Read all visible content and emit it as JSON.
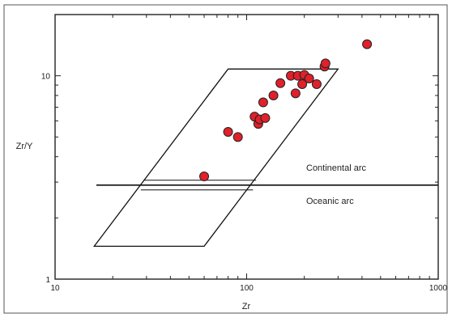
{
  "chart_data": {
    "type": "scatter",
    "xlabel": "Zr",
    "ylabel": "Zr/Y",
    "xscale": "log",
    "yscale": "log",
    "xlim": [
      10,
      1000
    ],
    "ylim": [
      1,
      20
    ],
    "x_major_ticks": [
      10,
      100,
      1000
    ],
    "y_major_ticks": [
      1,
      10
    ],
    "x_tick_labels": [
      "10",
      "100",
      "1000"
    ],
    "y_tick_labels": [
      "1",
      "10"
    ],
    "grid": false,
    "marker_color": "#e0202a",
    "points": [
      {
        "x": 60,
        "y": 3.2
      },
      {
        "x": 80,
        "y": 5.3
      },
      {
        "x": 90,
        "y": 5.0
      },
      {
        "x": 110,
        "y": 6.3
      },
      {
        "x": 115,
        "y": 5.8
      },
      {
        "x": 117,
        "y": 6.1
      },
      {
        "x": 122,
        "y": 7.4
      },
      {
        "x": 125,
        "y": 6.2
      },
      {
        "x": 138,
        "y": 8.0
      },
      {
        "x": 150,
        "y": 9.2
      },
      {
        "x": 170,
        "y": 10.0
      },
      {
        "x": 180,
        "y": 8.2
      },
      {
        "x": 185,
        "y": 10.0
      },
      {
        "x": 195,
        "y": 9.1
      },
      {
        "x": 200,
        "y": 10.1
      },
      {
        "x": 212,
        "y": 9.7
      },
      {
        "x": 232,
        "y": 9.1
      },
      {
        "x": 255,
        "y": 11.1
      },
      {
        "x": 258,
        "y": 11.5
      },
      {
        "x": 425,
        "y": 14.3
      }
    ],
    "field_outline": [
      [
        16,
        1.45
      ],
      [
        60,
        1.45
      ],
      [
        300,
        10.8
      ],
      [
        80,
        10.8
      ]
    ],
    "divider_y": 2.9,
    "annotations": [
      {
        "text": "Continental arc",
        "x": 180,
        "y": 3.3
      },
      {
        "text": "Oceanic arc",
        "x": 180,
        "y": 2.5
      }
    ]
  }
}
